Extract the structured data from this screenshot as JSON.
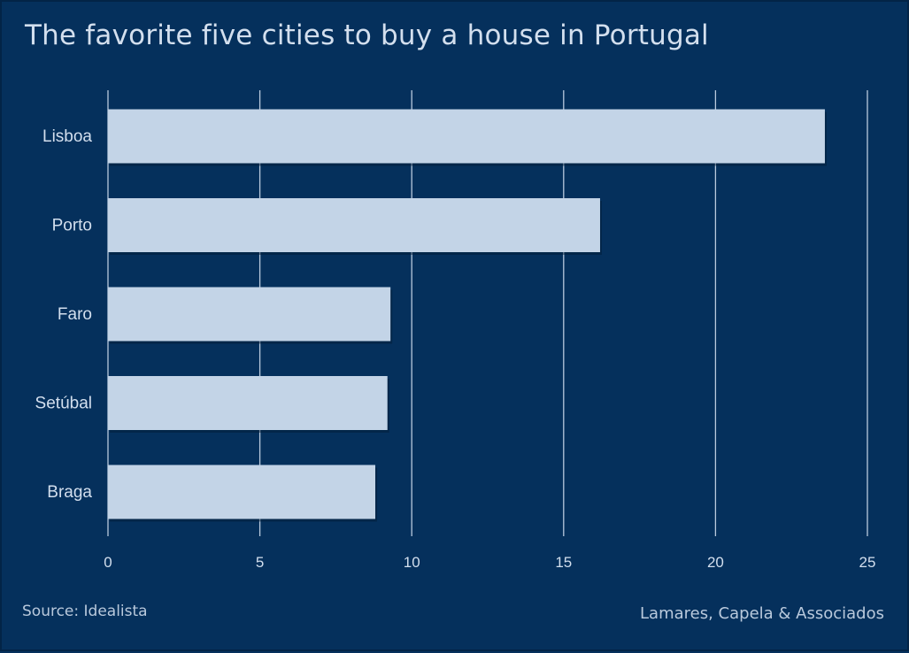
{
  "colors": {
    "background": "#05305c",
    "bar": "#c3d4e7",
    "gridline": "#b8c9dd",
    "text": "#d3dfee",
    "footer_text": "#b9c9dc"
  },
  "chart_data": {
    "type": "bar",
    "orientation": "horizontal",
    "title": "The favorite five cities to buy a house in Portugal",
    "categories": [
      "Lisboa",
      "Porto",
      "Faro",
      "Setúbal",
      "Braga"
    ],
    "values": [
      23.6,
      16.2,
      9.3,
      9.2,
      8.8
    ],
    "xlim": [
      0,
      25
    ],
    "xticks": [
      "0",
      "5",
      "10",
      "15",
      "20",
      "25"
    ],
    "grid": "vertical",
    "legend": "none"
  },
  "footer": {
    "source": "Source: Idealista",
    "credit": "Lamares, Capela & Associados"
  }
}
